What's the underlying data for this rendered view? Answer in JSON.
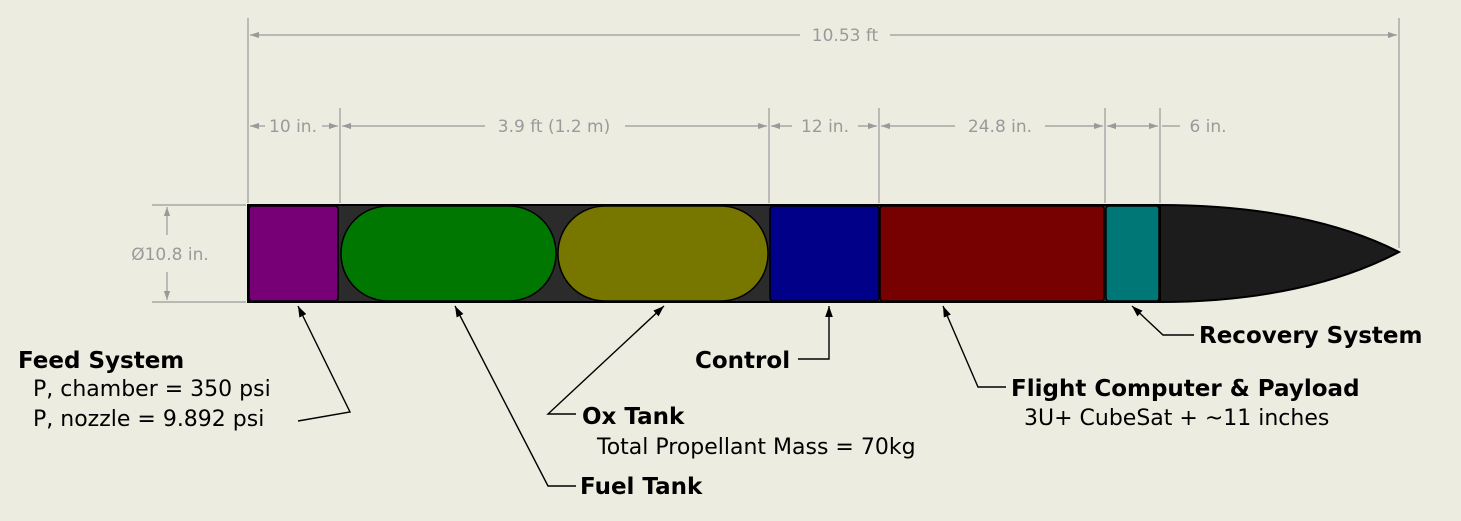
{
  "colors": {
    "background": "#edece0",
    "body": "#2b2b2b",
    "feed_system": "#770077",
    "fuel_tank": "#007700",
    "ox_tank": "#777700",
    "control": "#000088",
    "flight_computer": "#770000",
    "recovery": "#007777",
    "nose_cone": "#1c1c1c",
    "dimension": "#9a9a9a"
  },
  "dimensions": {
    "overall": "10.53 ft",
    "diameter": "Ø10.8 in.",
    "feed_section": "10 in.",
    "tank_section": "3.9 ft (1.2 m)",
    "control_section": "12 in.",
    "payload_section": "24.8 in.",
    "recovery_section": "6 in."
  },
  "labels": {
    "feed_system": {
      "title": "Feed System",
      "line1": "P, chamber = 350 psi",
      "line2": "P, nozzle = 9.892 psi"
    },
    "fuel_tank": {
      "title": "Fuel Tank"
    },
    "ox_tank": {
      "title": "Ox Tank",
      "line1": "Total Propellant Mass = 70kg"
    },
    "control": {
      "title": "Control"
    },
    "flight_computer": {
      "title": "Flight Computer & Payload",
      "line1": "3U+ CubeSat + ~11 inches"
    },
    "recovery": {
      "title": "Recovery System"
    }
  }
}
